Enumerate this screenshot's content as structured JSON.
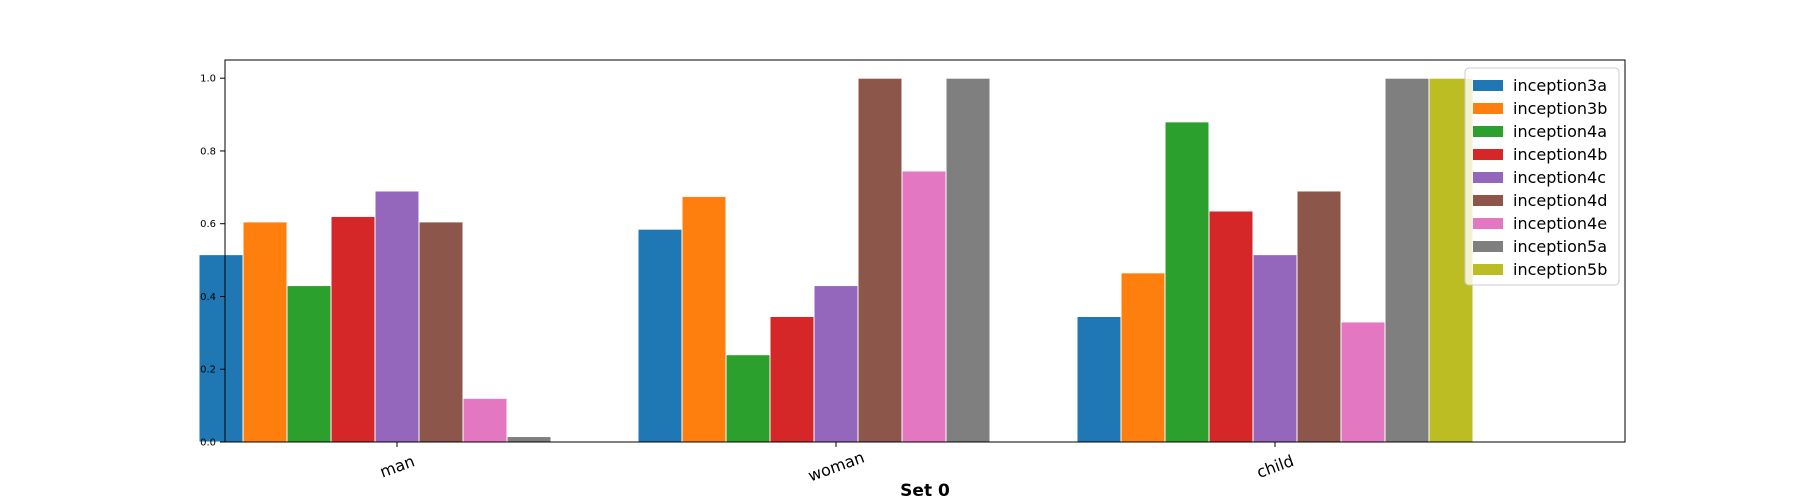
{
  "chart_data": {
    "type": "bar",
    "categories": [
      "man",
      "woman",
      "child"
    ],
    "xlabel": "Set 0",
    "ylabel": "",
    "ylim": [
      0,
      1.05
    ],
    "yticks": [
      "0.0",
      "0.2",
      "0.4",
      "0.6",
      "0.8",
      "1.0"
    ],
    "legend_position": "top-right",
    "grid": false,
    "series": [
      {
        "name": "inception3a",
        "color": "#1f77b4",
        "values": [
          0.515,
          0.585,
          0.345
        ]
      },
      {
        "name": "inception3b",
        "color": "#ff7f0e",
        "values": [
          0.605,
          0.675,
          0.465
        ]
      },
      {
        "name": "inception4a",
        "color": "#2ca02c",
        "values": [
          0.43,
          0.24,
          0.88
        ]
      },
      {
        "name": "inception4b",
        "color": "#d62728",
        "values": [
          0.62,
          0.345,
          0.635
        ]
      },
      {
        "name": "inception4c",
        "color": "#9467bd",
        "values": [
          0.69,
          0.43,
          0.515
        ]
      },
      {
        "name": "inception4d",
        "color": "#8c564b",
        "values": [
          0.605,
          1.0,
          0.69
        ]
      },
      {
        "name": "inception4e",
        "color": "#e377c2",
        "values": [
          0.12,
          0.745,
          0.33
        ]
      },
      {
        "name": "inception5a",
        "color": "#7f7f7f",
        "values": [
          0.015,
          1.0,
          1.0
        ]
      },
      {
        "name": "inception5b",
        "color": "#bcbd22",
        "values": [
          null,
          null,
          1.0
        ]
      }
    ]
  }
}
